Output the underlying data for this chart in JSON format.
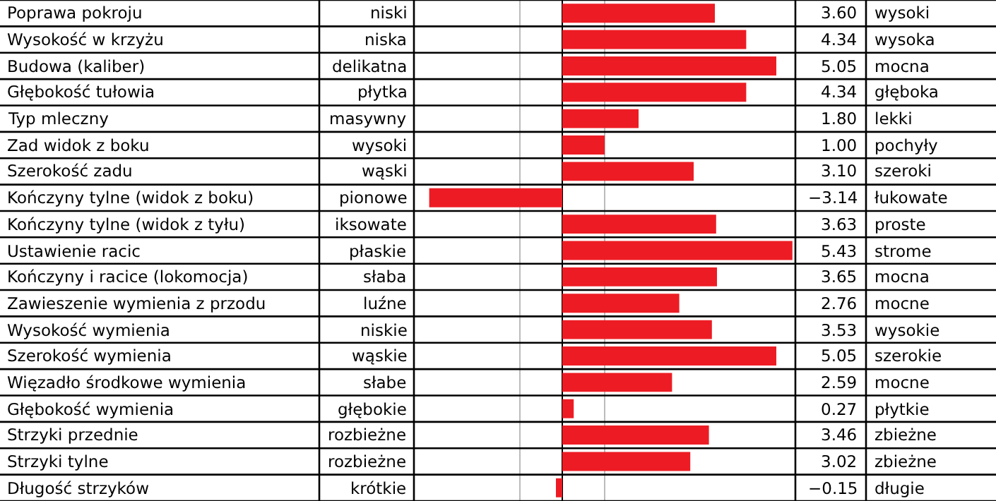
{
  "chart_data": {
    "type": "bar",
    "orientation": "horizontal",
    "categories": [
      "Poprawa pokroju",
      "Wysokość w krzyżu",
      "Budowa (kaliber)",
      "Głębokość tułowia",
      "Typ mleczny",
      "Zad widok z boku",
      "Szerokość zadu",
      "Kończyny tylne (widok z boku)",
      "Kończyny tylne (widok z tyłu)",
      "Ustawienie racic",
      "Kończyny i racice (lokomocja)",
      "Zawieszenie wymienia z przodu",
      "Wysokość wymienia",
      "Szerokość wymienia",
      "Więzadło środkowe wymienia",
      "Głębokość wymienia",
      "Strzyki przednie",
      "Strzyki tylne",
      "Długość strzyków"
    ],
    "values": [
      3.6,
      4.34,
      5.05,
      4.34,
      1.8,
      1.0,
      3.1,
      -3.14,
      3.63,
      5.43,
      3.65,
      2.76,
      3.53,
      5.05,
      2.59,
      0.27,
      3.46,
      3.02,
      -0.15
    ],
    "value_labels": [
      "3.60",
      "4.34",
      "5.05",
      "4.34",
      "1.80",
      "1.00",
      "3.10",
      "−3.14",
      "3.63",
      "5.43",
      "3.65",
      "2.76",
      "3.53",
      "5.05",
      "2.59",
      "0.27",
      "3.46",
      "3.02",
      "−0.15"
    ],
    "color": "#ed1c24",
    "xlim": [
      -3.5,
      5.5
    ],
    "xticks": [
      {
        "value": -1,
        "label": null
      },
      {
        "value": 0,
        "label": null
      },
      {
        "value": 1,
        "label": null
      }
    ],
    "grid": "x",
    "legend": false,
    "tick_labels": "y",
    "annotations": [
      "niski",
      "niska",
      "delikatna",
      "płytka",
      "masywny",
      "wysoki",
      "wąski",
      "pionowe",
      "iksowate",
      "płaskie",
      "słaba",
      "luźne",
      "niskie",
      "wąskie",
      "słabe",
      "głębokie",
      "rozbieżne",
      "rozbieżne",
      "krótkie",
      "wysoki",
      "wysoka",
      "mocna",
      "głęboka",
      "lekki",
      "pochyły",
      "szeroki",
      "łukowate",
      "proste",
      "strome",
      "mocna",
      "mocne",
      "wysokie",
      "szerokie",
      "mocne",
      "płytkie",
      "zbieżne",
      "zbieżne",
      "długie"
    ]
  }
}
